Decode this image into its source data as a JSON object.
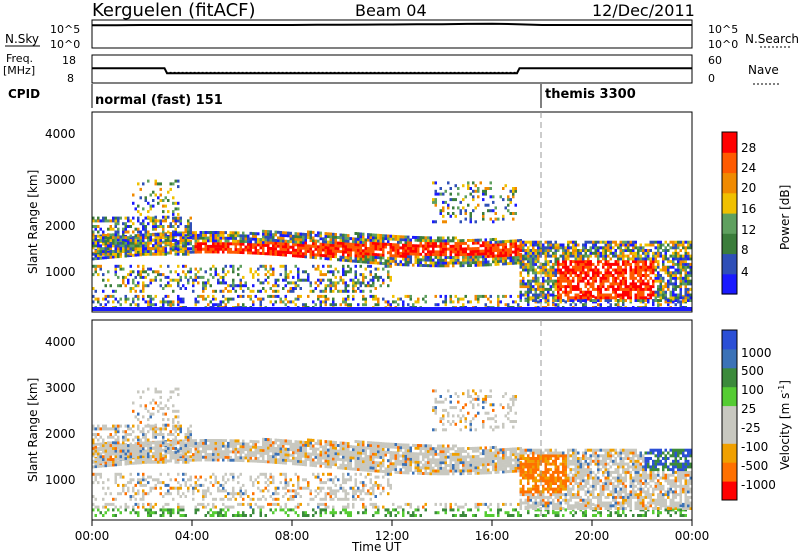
{
  "header": {
    "station": "Kerguelen (fitACF)",
    "beam": "Beam 04",
    "date": "12/Dec/2011"
  },
  "labels": {
    "nsky": "N.Sky",
    "nsearch": "N.Search",
    "freq_line1": "Freq.",
    "freq_line2": "[MHz]",
    "nave": "Nave",
    "cpid": "CPID",
    "cpid_first": "normal (fast) 151",
    "cpid_second": "themis 3300",
    "noise_high": "10^5",
    "noise_low": "10^0",
    "noise_high_r": "10^5",
    "noise_low_r": "10^0",
    "freq_high": "18",
    "freq_low": "8",
    "nave_high": "60",
    "nave_low": "0"
  },
  "time_axis": {
    "label": "Time UT",
    "ticks": [
      "00:00",
      "04:00",
      "08:00",
      "12:00",
      "16:00",
      "20:00",
      "00:00"
    ]
  },
  "colors": {
    "power": [
      "#1a1aff",
      "#2f4fb7",
      "#3b7d3b",
      "#5fa05f",
      "#f0c000",
      "#f08a00",
      "#ff5a00",
      "#ff0000"
    ],
    "velocity": [
      "#2b4fd6",
      "#3b72b7",
      "#3b8a3b",
      "#55cc33",
      "#c8c8c0",
      "#c8c8c0",
      "#f0a000",
      "#ff7000",
      "#ff0000"
    ]
  },
  "chart_data": [
    {
      "type": "line",
      "title": "N.Sky / N.Search",
      "y_scale": "log",
      "ylim": [
        1,
        100000
      ],
      "x": [
        0,
        1,
        2,
        3,
        4,
        5,
        6,
        7,
        8,
        9,
        10,
        11,
        12,
        13,
        14,
        15,
        16,
        17,
        18,
        19,
        20,
        21,
        22,
        23,
        24
      ],
      "series": [
        {
          "name": "N.Sky",
          "values": [
            12000,
            12000,
            13000,
            13000,
            13000,
            13000,
            13000,
            13000,
            13000,
            14000,
            14000,
            15000,
            16000,
            17000,
            18000,
            20000,
            22000,
            18000,
            13000,
            13000,
            13000,
            13000,
            13000,
            13000,
            13000
          ]
        }
      ]
    },
    {
      "type": "line",
      "title": "Freq. [MHz] / Nave",
      "ylim": [
        8,
        18
      ],
      "x": [
        0,
        2.9,
        3.0,
        17.0,
        17.1,
        24
      ],
      "series": [
        {
          "name": "Freq.",
          "values": [
            13.3,
            13.3,
            11.5,
            11.5,
            13.3,
            13.3
          ]
        },
        {
          "name": "Nave",
          "values": [
            13.3,
            13.3,
            11.8,
            11.8,
            13.3,
            13.3
          ]
        }
      ]
    },
    {
      "type": "heatmap",
      "title": "Power [dB]",
      "ylabel": "Slant Range [km]",
      "xlim": [
        0,
        24
      ],
      "ylim": [
        180,
        4500
      ],
      "colorbar_ticks": [
        "4",
        "8",
        "12",
        "16",
        "20",
        "24",
        "28"
      ],
      "colorbar_label": "Power [dB]",
      "y_ticks": [
        "1000",
        "2000",
        "3000",
        "4000"
      ]
    },
    {
      "type": "heatmap",
      "title": "Velocity [m s-1]",
      "ylabel": "Slant Range [km]",
      "xlim": [
        0,
        24
      ],
      "ylim": [
        180,
        4500
      ],
      "colorbar_ticks": [
        "1000",
        "500",
        "100",
        "25",
        "-25",
        "-100",
        "-500",
        "-1000"
      ],
      "colorbar_label": "Velocity [m s",
      "colorbar_label_exp": "-1",
      "colorbar_label_end": "]",
      "y_ticks": [
        "1000",
        "2000",
        "3000",
        "4000"
      ]
    }
  ]
}
